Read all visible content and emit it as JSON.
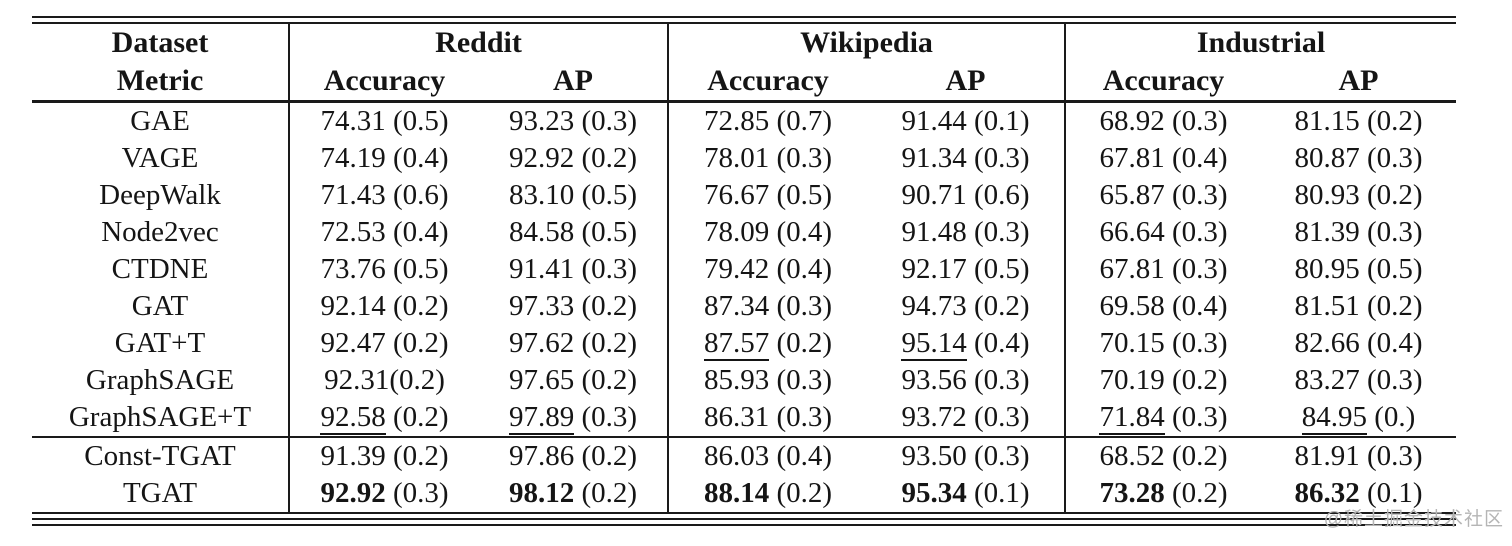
{
  "watermark": "@稀土掘金技术社区",
  "table": {
    "corner": {
      "top": "Dataset",
      "bottom": "Metric"
    },
    "groups": [
      {
        "label": "Reddit"
      },
      {
        "label": "Wikipedia"
      },
      {
        "label": "Industrial"
      }
    ],
    "metrics": [
      "Accuracy",
      "AP"
    ],
    "rows": [
      {
        "label": "GAE",
        "cells": [
          {
            "m": "74.31",
            "s": "(0.5)"
          },
          {
            "m": "93.23",
            "s": "(0.3)"
          },
          {
            "m": "72.85",
            "s": "(0.7)"
          },
          {
            "m": "91.44",
            "s": "(0.1)"
          },
          {
            "m": "68.92",
            "s": "(0.3)"
          },
          {
            "m": "81.15",
            "s": "(0.2)"
          }
        ]
      },
      {
        "label": "VAGE",
        "cells": [
          {
            "m": "74.19",
            "s": "(0.4)"
          },
          {
            "m": "92.92",
            "s": "(0.2)"
          },
          {
            "m": "78.01",
            "s": "(0.3)"
          },
          {
            "m": "91.34",
            "s": "(0.3)"
          },
          {
            "m": "67.81",
            "s": "(0.4)"
          },
          {
            "m": "80.87",
            "s": "(0.3)"
          }
        ]
      },
      {
        "label": "DeepWalk",
        "cells": [
          {
            "m": "71.43",
            "s": "(0.6)"
          },
          {
            "m": "83.10",
            "s": "(0.5)"
          },
          {
            "m": "76.67",
            "s": "(0.5)"
          },
          {
            "m": "90.71",
            "s": "(0.6)"
          },
          {
            "m": "65.87",
            "s": "(0.3)"
          },
          {
            "m": "80.93",
            "s": "(0.2)"
          }
        ]
      },
      {
        "label": "Node2vec",
        "cells": [
          {
            "m": "72.53",
            "s": "(0.4)"
          },
          {
            "m": "84.58",
            "s": "(0.5)"
          },
          {
            "m": "78.09",
            "s": "(0.4)"
          },
          {
            "m": "91.48",
            "s": "(0.3)"
          },
          {
            "m": "66.64",
            "s": "(0.3)"
          },
          {
            "m": "81.39",
            "s": "(0.3)"
          }
        ]
      },
      {
        "label": "CTDNE",
        "cells": [
          {
            "m": "73.76",
            "s": "(0.5)"
          },
          {
            "m": "91.41",
            "s": "(0.3)"
          },
          {
            "m": "79.42",
            "s": "(0.4)"
          },
          {
            "m": "92.17",
            "s": "(0.5)"
          },
          {
            "m": "67.81",
            "s": "(0.3)"
          },
          {
            "m": "80.95",
            "s": "(0.5)"
          }
        ]
      },
      {
        "label": "GAT",
        "cells": [
          {
            "m": "92.14",
            "s": "(0.2)"
          },
          {
            "m": "97.33",
            "s": "(0.2)"
          },
          {
            "m": "87.34",
            "s": "(0.3)"
          },
          {
            "m": "94.73",
            "s": "(0.2)"
          },
          {
            "m": "69.58",
            "s": "(0.4)"
          },
          {
            "m": "81.51",
            "s": "(0.2)"
          }
        ]
      },
      {
        "label": "GAT+T",
        "cells": [
          {
            "m": "92.47",
            "s": "(0.2)"
          },
          {
            "m": "97.62",
            "s": "(0.2)"
          },
          {
            "m": "87.57",
            "s": "(0.2)",
            "e": "u"
          },
          {
            "m": "95.14",
            "s": "(0.4)",
            "e": "u"
          },
          {
            "m": "70.15",
            "s": "(0.3)"
          },
          {
            "m": "82.66",
            "s": "(0.4)"
          }
        ]
      },
      {
        "label": "GraphSAGE",
        "cells": [
          {
            "m": "92.31",
            "s": "(0.2)",
            "nsp": true
          },
          {
            "m": "97.65",
            "s": "(0.2)"
          },
          {
            "m": "85.93",
            "s": "(0.3)"
          },
          {
            "m": "93.56",
            "s": "(0.3)"
          },
          {
            "m": "70.19",
            "s": "(0.2)"
          },
          {
            "m": "83.27",
            "s": "(0.3)"
          }
        ]
      },
      {
        "label": "GraphSAGE+T",
        "cells": [
          {
            "m": "92.58",
            "s": "(0.2)",
            "e": "u"
          },
          {
            "m": "97.89",
            "s": "(0.3)",
            "e": "u"
          },
          {
            "m": "86.31",
            "s": "(0.3)"
          },
          {
            "m": "93.72",
            "s": "(0.3)"
          },
          {
            "m": "71.84",
            "s": "(0.3)",
            "e": "u"
          },
          {
            "m": "84.95",
            "s": "(0.)",
            "e": "u"
          }
        ]
      },
      {
        "label": "Const-TGAT",
        "section_start": true,
        "cells": [
          {
            "m": "91.39",
            "s": "(0.2)"
          },
          {
            "m": "97.86",
            "s": "(0.2)"
          },
          {
            "m": "86.03",
            "s": "(0.4)"
          },
          {
            "m": "93.50",
            "s": "(0.3)"
          },
          {
            "m": "68.52",
            "s": "(0.2)"
          },
          {
            "m": "81.91",
            "s": "(0.3)"
          }
        ]
      },
      {
        "label": "TGAT",
        "cells": [
          {
            "m": "92.92",
            "s": "(0.3)",
            "e": "b"
          },
          {
            "m": "98.12",
            "s": "(0.2)",
            "e": "b"
          },
          {
            "m": "88.14",
            "s": "(0.2)",
            "e": "b"
          },
          {
            "m": "95.34",
            "s": "(0.1)",
            "e": "b"
          },
          {
            "m": "73.28",
            "s": "(0.2)",
            "e": "b"
          },
          {
            "m": "86.32",
            "s": "(0.1)",
            "e": "b"
          }
        ]
      }
    ]
  }
}
